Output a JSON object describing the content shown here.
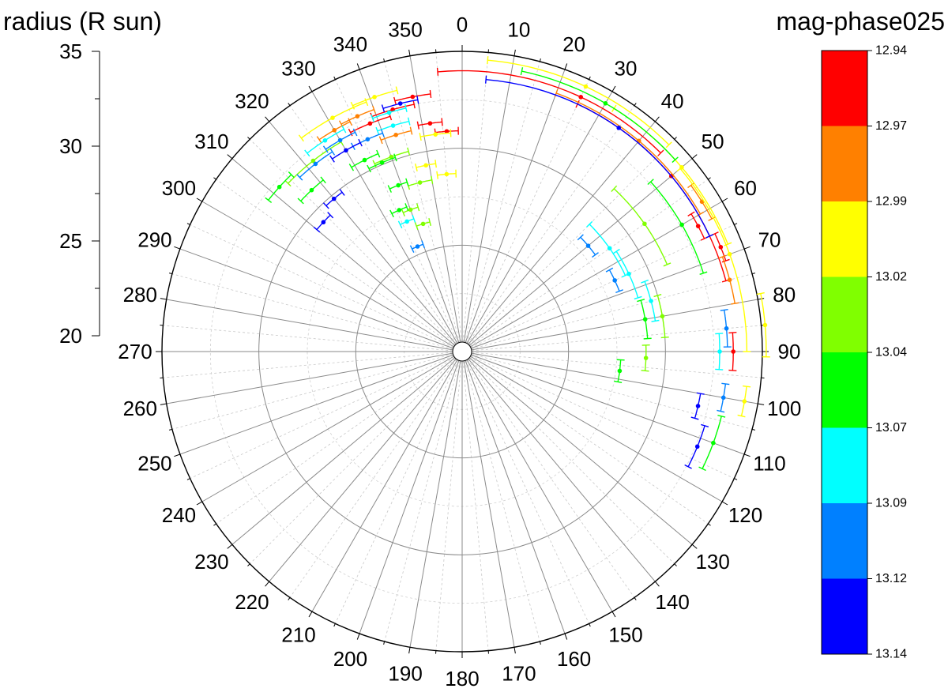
{
  "chart_data": {
    "type": "scatter",
    "subtype": "polar",
    "radial_axis": {
      "title": "radius (R sun)",
      "range": [
        20,
        35
      ],
      "ticks": [
        20,
        25,
        30,
        35
      ]
    },
    "angular_axis": {
      "ticks": [
        0,
        10,
        20,
        30,
        40,
        50,
        60,
        70,
        80,
        90,
        100,
        110,
        120,
        130,
        140,
        150,
        160,
        170,
        180,
        190,
        200,
        210,
        220,
        230,
        240,
        250,
        260,
        270,
        280,
        290,
        300,
        310,
        320,
        330,
        340,
        350
      ],
      "direction": "clockwise",
      "zero": "top"
    },
    "colorbar": {
      "title": "mag-phase025",
      "tick_labels": [
        "12.94",
        "12.97",
        "12.99",
        "13.02",
        "13.04",
        "13.07",
        "13.09",
        "13.12",
        "13.14"
      ],
      "colors": [
        "#ff0000",
        "#ff8000",
        "#ffff00",
        "#80ff00",
        "#00ff00",
        "#00ffff",
        "#0080ff",
        "#0000ff"
      ]
    },
    "grid": true,
    "series": [
      {
        "color_index": 0,
        "points": [
          {
            "pa": 349,
            "r": 32.9,
            "dpa": 4
          },
          {
            "pa": 344,
            "r": 32.5,
            "dpa": 5
          },
          {
            "pa": 338,
            "r": 32.2,
            "dpa": 5
          },
          {
            "pa": 352,
            "r": 31.4,
            "dpa": 3
          },
          {
            "pa": 356,
            "r": 30.9,
            "dpa": 3
          },
          {
            "pa": 25,
            "r": 34.0,
            "dpa": 30,
            "dpa2": 45
          },
          {
            "pa": 50,
            "r": 33.6,
            "dpa": 25
          },
          {
            "pa": 90,
            "r": 33.5,
            "dpa": 4
          },
          {
            "pa": 62,
            "r": 33.3,
            "dpa": 3
          },
          {
            "pa": 68,
            "r": 33.9,
            "dpa": 3
          }
        ]
      },
      {
        "color_index": 1,
        "points": [
          {
            "pa": 330,
            "r": 32.7,
            "dpa": 4
          },
          {
            "pa": 336,
            "r": 32.8,
            "dpa": 4
          },
          {
            "pa": 343,
            "r": 31.2,
            "dpa": 4
          },
          {
            "pa": 40,
            "r": 33.7,
            "dpa": 20
          },
          {
            "pa": 58,
            "r": 34.1,
            "dpa": 4
          },
          {
            "pa": 75,
            "r": 33.8,
            "dpa": 5
          }
        ]
      },
      {
        "color_index": 2,
        "points": [
          {
            "pa": 331,
            "r": 33.3,
            "dpa": 8
          },
          {
            "pa": 341,
            "r": 33.4,
            "dpa": 5
          },
          {
            "pa": 353,
            "r": 30.8,
            "dpa": 4
          },
          {
            "pa": 349,
            "r": 29.3,
            "dpa": 3
          },
          {
            "pa": 355,
            "r": 28.7,
            "dpa": 3
          },
          {
            "pa": 25,
            "r": 34.6,
            "dpa": 20
          },
          {
            "pa": 70,
            "r": 34.2,
            "dpa": 20
          },
          {
            "pa": 50,
            "r": 34.3,
            "dpa": 18
          },
          {
            "pa": 85,
            "r": 35.2,
            "dpa": 6
          },
          {
            "pa": 100,
            "r": 34.3,
            "dpa": 3
          }
        ]
      },
      {
        "color_index": 3,
        "points": [
          {
            "pa": 322,
            "r": 32.0,
            "dpa": 8
          },
          {
            "pa": 340,
            "r": 30.2,
            "dpa": 5
          },
          {
            "pa": 346,
            "r": 28.5,
            "dpa": 4
          },
          {
            "pa": 340,
            "r": 27.3,
            "dpa": 3
          },
          {
            "pa": 343,
            "r": 26.4,
            "dpa": 3
          },
          {
            "pa": 55,
            "r": 31.0,
            "dpa": 12
          },
          {
            "pa": 80,
            "r": 30.0,
            "dpa": 6
          },
          {
            "pa": 92,
            "r": 29.0,
            "dpa": 4
          }
        ]
      },
      {
        "color_index": 4,
        "points": [
          {
            "pa": 317,
            "r": 30.9,
            "dpa": 4
          },
          {
            "pa": 312,
            "r": 32.2,
            "dpa": 4
          },
          {
            "pa": 333,
            "r": 30.6,
            "dpa": 4
          },
          {
            "pa": 337,
            "r": 30.1,
            "dpa": 4
          },
          {
            "pa": 339,
            "r": 28.7,
            "dpa": 3
          },
          {
            "pa": 336,
            "r": 27.5,
            "dpa": 3
          },
          {
            "pa": 30,
            "r": 34.3,
            "dpa": 18
          },
          {
            "pa": 60,
            "r": 32.6,
            "dpa": 12
          },
          {
            "pa": 97,
            "r": 27.7,
            "dpa": 4
          },
          {
            "pa": 110,
            "r": 33.3,
            "dpa": 6
          },
          {
            "pa": 80,
            "r": 29.1,
            "dpa": 6
          }
        ]
      },
      {
        "color_index": 5,
        "points": [
          {
            "pa": 327,
            "r": 32.5,
            "dpa": 5
          },
          {
            "pa": 343,
            "r": 32.4,
            "dpa": 4
          },
          {
            "pa": 337,
            "r": 26.8,
            "dpa": 3
          },
          {
            "pa": 343,
            "r": 31.7,
            "dpa": 4
          },
          {
            "pa": 55,
            "r": 28.8,
            "dpa": 10
          },
          {
            "pa": 65,
            "r": 29.0,
            "dpa": 8
          },
          {
            "pa": 90,
            "r": 32.8,
            "dpa": 4
          },
          {
            "pa": 75,
            "r": 29.6,
            "dpa": 6
          }
        ]
      },
      {
        "color_index": 6,
        "points": [
          {
            "pa": 322,
            "r": 31.8,
            "dpa": 5
          },
          {
            "pa": 330,
            "r": 32.1,
            "dpa": 4
          },
          {
            "pa": 336,
            "r": 31.5,
            "dpa": 4
          },
          {
            "pa": 337,
            "r": 25.4,
            "dpa": 3
          },
          {
            "pa": 50,
            "r": 28.0,
            "dpa": 4
          },
          {
            "pa": 65,
            "r": 28.2,
            "dpa": 4
          },
          {
            "pa": 85,
            "r": 33.2,
            "dpa": 4
          },
          {
            "pa": 100,
            "r": 33.2,
            "dpa": 3
          }
        ]
      },
      {
        "color_index": 7,
        "points": [
          {
            "pa": 346,
            "r": 32.7,
            "dpa": 4
          },
          {
            "pa": 330,
            "r": 31.5,
            "dpa": 4
          },
          {
            "pa": 320,
            "r": 29.8,
            "dpa": 3
          },
          {
            "pa": 313,
            "r": 29.3,
            "dpa": 3
          },
          {
            "pa": 35,
            "r": 33.6,
            "dpa": 30
          },
          {
            "pa": 103,
            "r": 32.0,
            "dpa": 3
          },
          {
            "pa": 112,
            "r": 32.6,
            "dpa": 5
          }
        ]
      }
    ]
  }
}
